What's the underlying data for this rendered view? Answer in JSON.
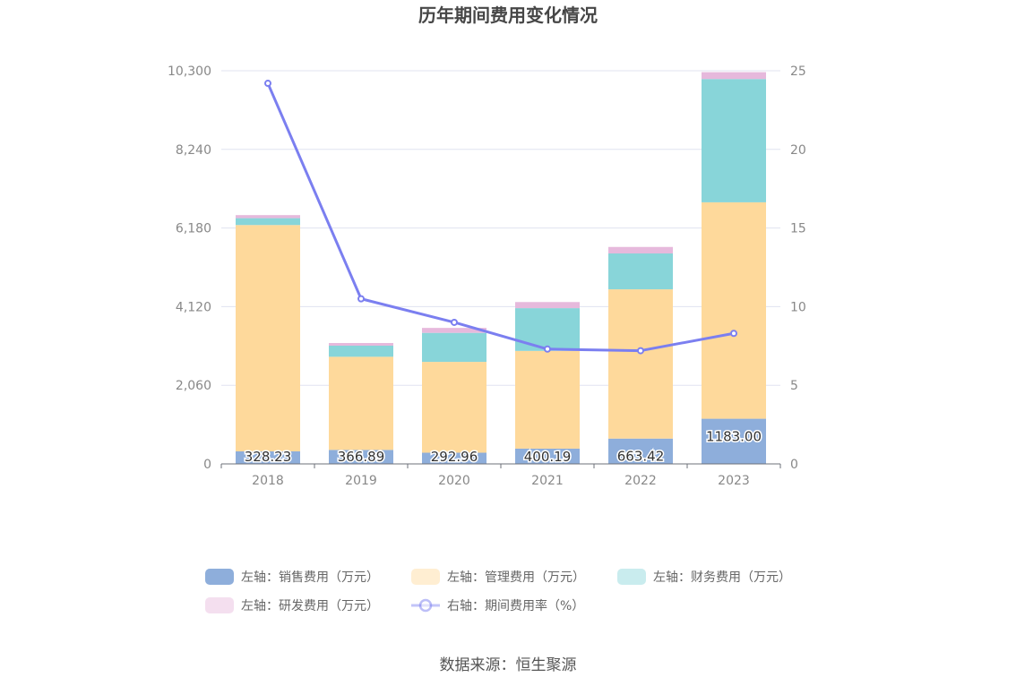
{
  "chart_data": {
    "type": "bar",
    "title": "历年期间费用变化情况",
    "categories": [
      "2018",
      "2019",
      "2020",
      "2021",
      "2022",
      "2023"
    ],
    "series": [
      {
        "name": "左轴：销售费用（万元）",
        "axis": "left",
        "kind": "stacked-bar",
        "color": "#8eaedb",
        "values": [
          328.23,
          366.89,
          292.96,
          400.19,
          663.42,
          1183.0
        ],
        "labels": [
          "328.23",
          "366.89",
          "292.96",
          "400.19",
          "663.42",
          "1183.00"
        ]
      },
      {
        "name": "左轴：管理费用（万元）",
        "axis": "left",
        "kind": "stacked-bar",
        "color": "#fed99b",
        "values": [
          5930,
          2440,
          2380,
          2560,
          3910,
          5670
        ]
      },
      {
        "name": "左轴：财务费用（万元）",
        "axis": "left",
        "kind": "stacked-bar",
        "color": "#88d5d9",
        "values": [
          180,
          290,
          760,
          1120,
          940,
          3230
        ]
      },
      {
        "name": "左轴：研发费用（万元）",
        "axis": "left",
        "kind": "stacked-bar",
        "color": "#e6b9dc",
        "values": [
          80,
          70,
          130,
          160,
          170,
          180
        ]
      },
      {
        "name": "右轴：期间费用率（%）",
        "axis": "right",
        "kind": "line",
        "color": "#7b7ff0",
        "values": [
          24.2,
          10.5,
          9.0,
          7.3,
          7.2,
          8.3
        ]
      }
    ],
    "y_left": {
      "min": 0,
      "max": 10300,
      "ticks": [
        "0",
        "2,060",
        "4,120",
        "6,180",
        "8,240",
        "10,300"
      ]
    },
    "y_right": {
      "min": 0,
      "max": 25,
      "ticks": [
        "0",
        "5",
        "10",
        "15",
        "20",
        "25"
      ]
    },
    "grid": true,
    "legend_position": "bottom"
  },
  "source": "数据来源：恒生聚源"
}
